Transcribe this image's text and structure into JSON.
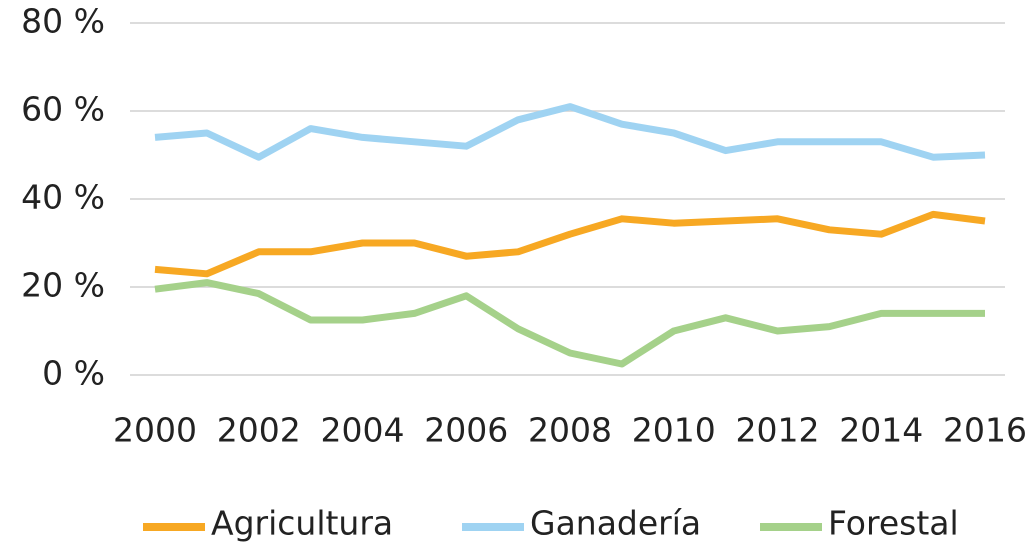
{
  "chart_data": {
    "type": "line",
    "x": [
      2000,
      2001,
      2002,
      2003,
      2004,
      2005,
      2006,
      2007,
      2008,
      2009,
      2010,
      2011,
      2012,
      2013,
      2014,
      2015,
      2016
    ],
    "series": [
      {
        "name": "Agricultura",
        "color": "#f7a823",
        "values": [
          24,
          23,
          28,
          28,
          30,
          30,
          27,
          28,
          32,
          35.5,
          34.5,
          35,
          35.5,
          33,
          32,
          36.5,
          35
        ]
      },
      {
        "name": "Ganadería",
        "color": "#9fd3f2",
        "values": [
          54,
          55,
          49.5,
          56,
          54,
          53,
          52,
          58,
          61,
          57,
          55,
          51,
          53,
          53,
          53,
          49.5,
          50
        ]
      },
      {
        "name": "Forestal",
        "color": "#a5d18a",
        "values": [
          19.5,
          21,
          18.5,
          12.5,
          12.5,
          14,
          18,
          10.5,
          5,
          2.5,
          10,
          13,
          10,
          11,
          14,
          14,
          14
        ]
      }
    ],
    "xlim": [
      2000,
      2016
    ],
    "xticks": [
      2000,
      2002,
      2004,
      2006,
      2008,
      2010,
      2012,
      2014,
      2016
    ],
    "ylim": [
      0,
      80
    ],
    "yticks": [
      {
        "value": 0,
        "label": "0 %"
      },
      {
        "value": 20,
        "label": "20 %"
      },
      {
        "value": 40,
        "label": "40 %"
      },
      {
        "value": 60,
        "label": "60 %"
      },
      {
        "value": 80,
        "label": "80 %"
      }
    ],
    "grid": true,
    "legend": "bottom"
  }
}
